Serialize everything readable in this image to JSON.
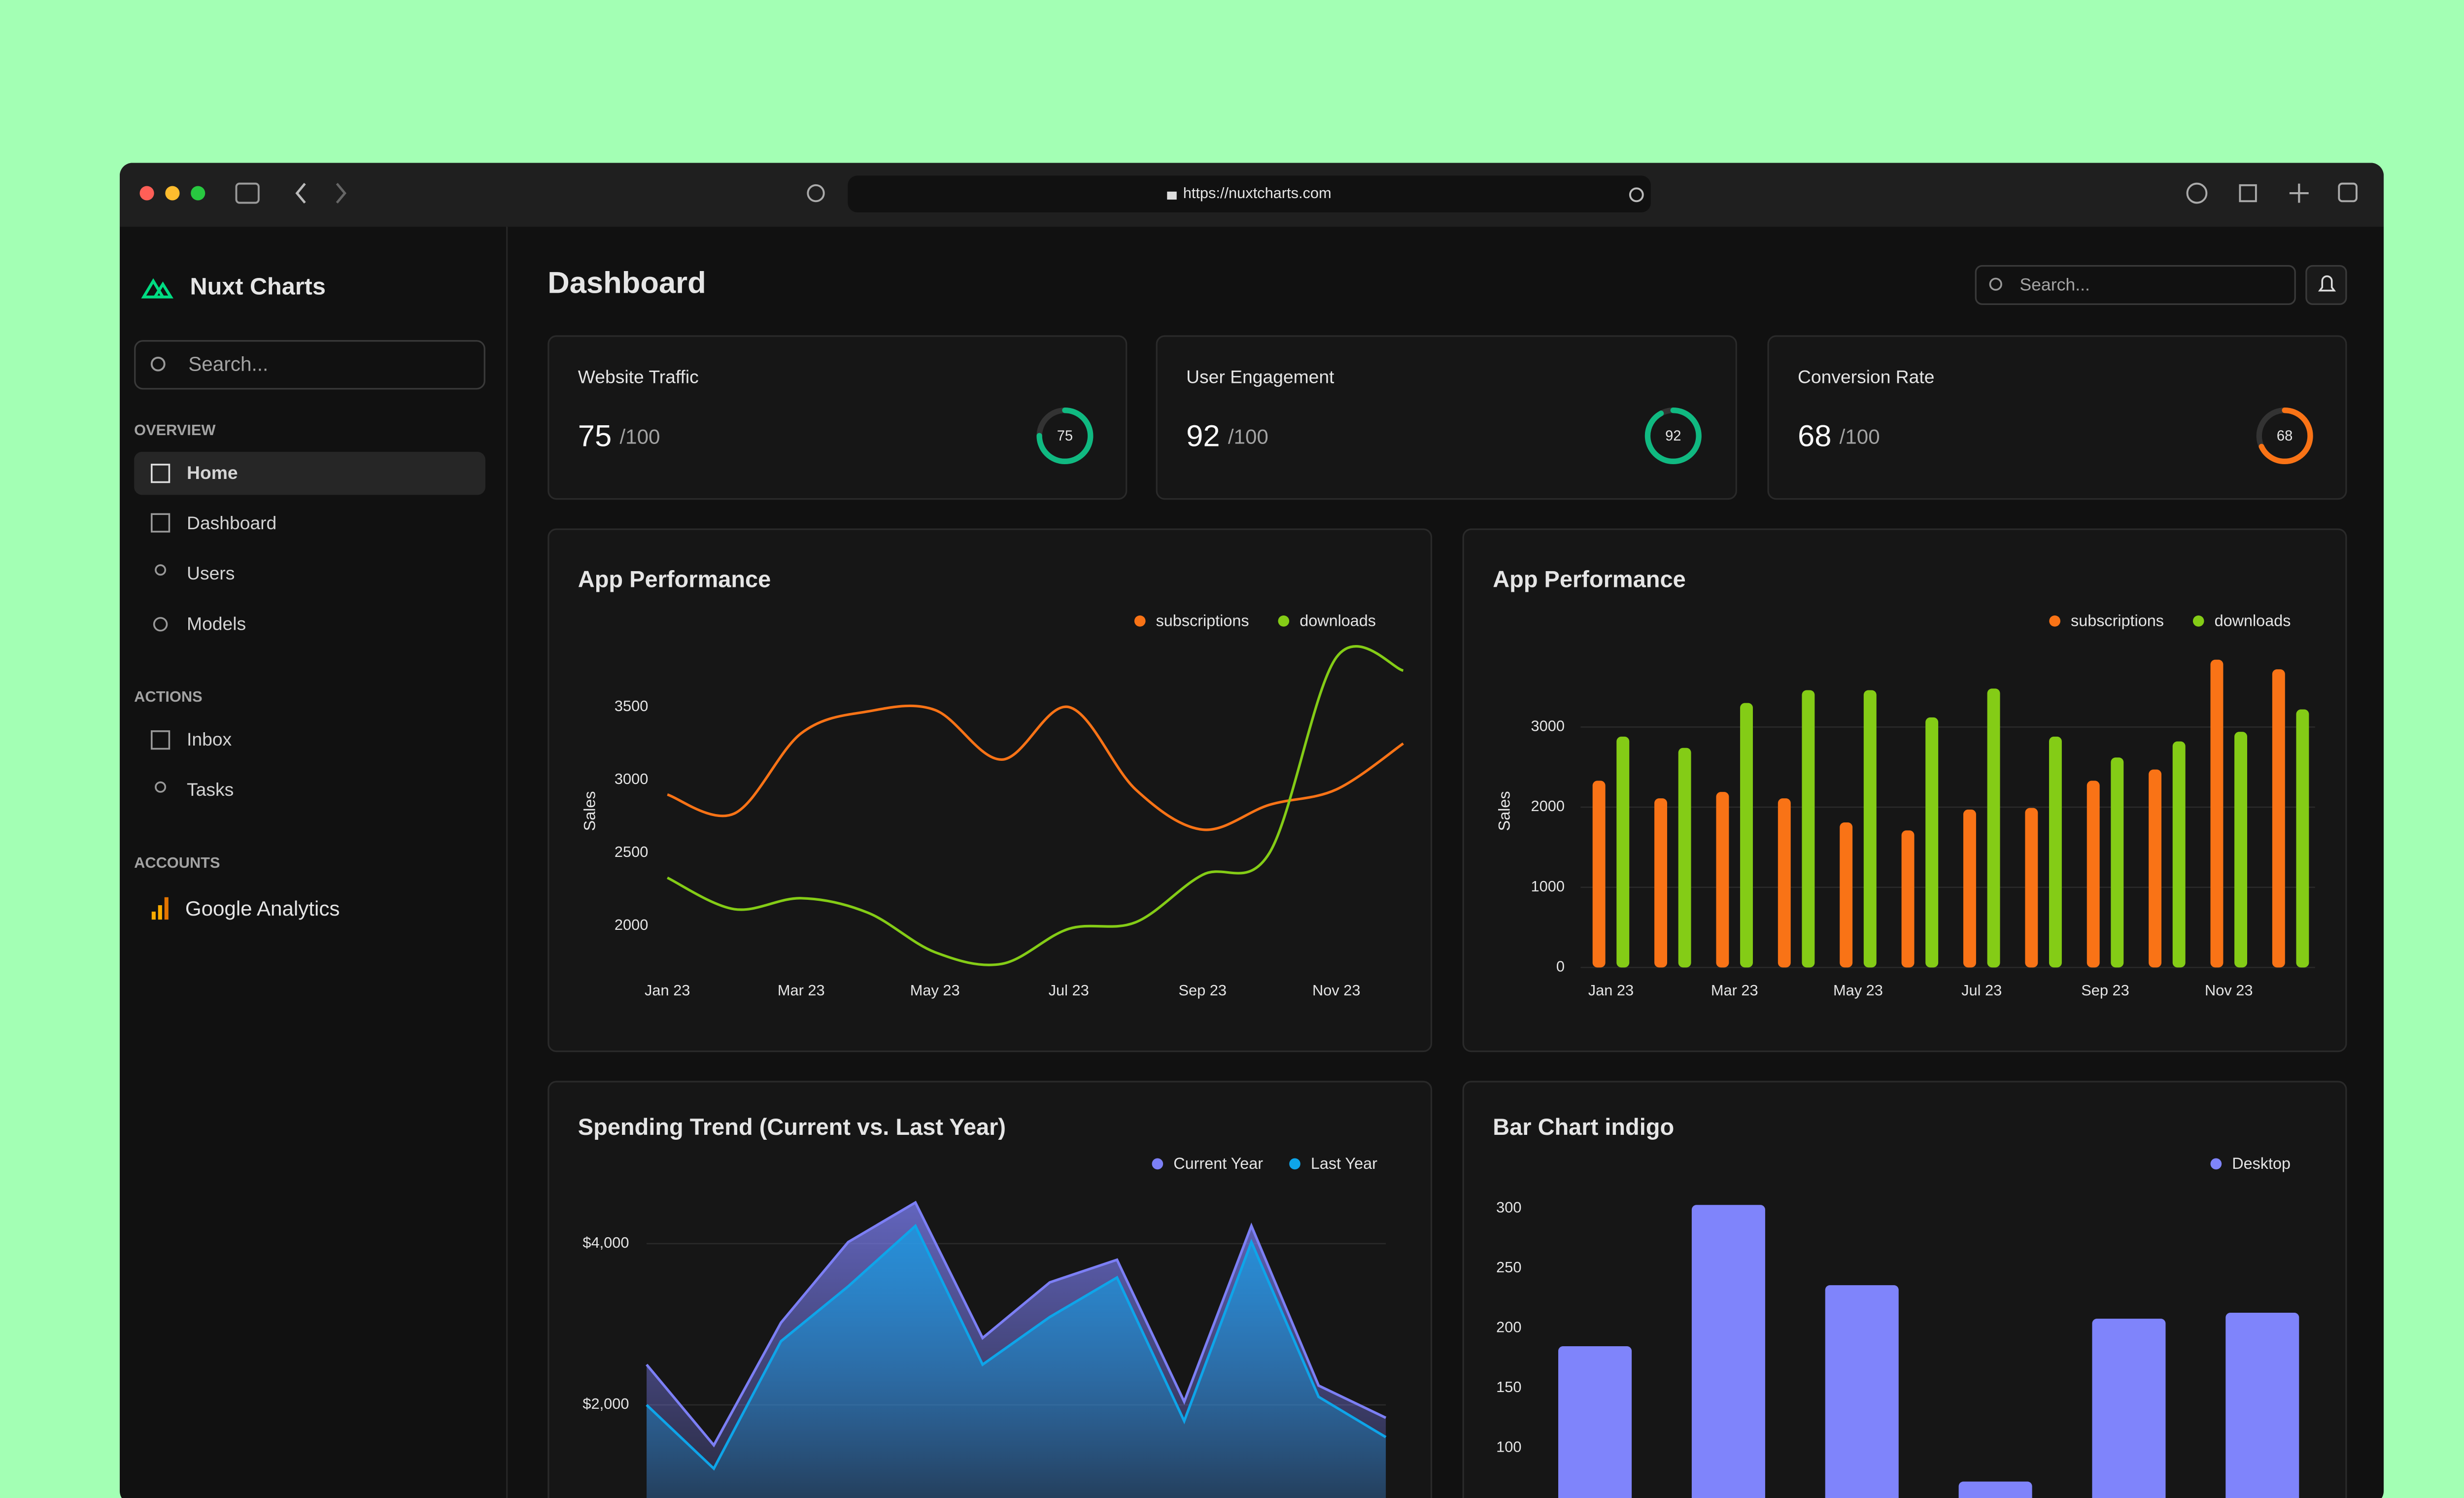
{
  "browser": {
    "url": "https://nuxtcharts.com"
  },
  "sidebar": {
    "brand": "Nuxt Charts",
    "search_placeholder": "Search...",
    "sections": [
      {
        "title": "OVERVIEW",
        "items": [
          "Home",
          "Dashboard",
          "Users",
          "Models"
        ]
      },
      {
        "title": "ACTIONS",
        "items": [
          "Inbox",
          "Tasks"
        ]
      },
      {
        "title": "ACCOUNTS",
        "items": [
          "Google Analytics"
        ]
      }
    ]
  },
  "header": {
    "title": "Dashboard",
    "search_placeholder": "Search..."
  },
  "stats": [
    {
      "label": "Website Traffic",
      "value": 75,
      "suffix": "/100",
      "max": 100,
      "color": "#10b981"
    },
    {
      "label": "User Engagement",
      "value": 92,
      "suffix": "/100",
      "max": 100,
      "color": "#10b981"
    },
    {
      "label": "Conversion Rate",
      "value": 68,
      "suffix": "/100",
      "max": 100,
      "color": "#f97316"
    }
  ],
  "chart_data": [
    {
      "type": "line",
      "title": "App Performance",
      "y_label": "Sales",
      "categories": [
        "Jan 23",
        null,
        "Mar 23",
        null,
        "May 23",
        null,
        "Jul 23",
        null,
        "Sep 23",
        null,
        "Nov 23",
        null
      ],
      "series": [
        {
          "name": "subscriptions",
          "color": "#f97316",
          "values": [
            2900,
            2770,
            3320,
            3470,
            3480,
            3140,
            3500,
            2935,
            2660,
            2830,
            2935,
            3250
          ]
        },
        {
          "name": "downloads",
          "color": "#84cc16",
          "values": [
            2330,
            2115,
            2190,
            2090,
            1820,
            1740,
            1980,
            2025,
            2350,
            2500,
            3840,
            3750
          ]
        }
      ],
      "ylim": [
        1700,
        3900
      ],
      "yticks": [
        2000,
        2500,
        3000,
        3500
      ],
      "grid": false
    },
    {
      "type": "bar",
      "title": "App Performance",
      "y_label": "Sales",
      "categories": [
        "Jan 23",
        null,
        "Mar 23",
        null,
        "May 23",
        null,
        "Jul 23",
        null,
        "Sep 23",
        null,
        "Nov 23",
        null
      ],
      "series": [
        {
          "name": "subscriptions",
          "color": "#f97316",
          "values": [
            2330,
            2110,
            2190,
            2110,
            1810,
            1710,
            1970,
            1990,
            2330,
            2470,
            3840,
            3720
          ]
        },
        {
          "name": "downloads",
          "color": "#84cc16",
          "values": [
            2880,
            2740,
            3300,
            3460,
            3460,
            3120,
            3480,
            2880,
            2620,
            2820,
            2940,
            3220
          ]
        }
      ],
      "ylim": [
        0,
        3900
      ],
      "yticks": [
        0,
        1000,
        2000,
        3000
      ],
      "grid": true
    },
    {
      "type": "area",
      "title": "Spending Trend (Current vs. Last Year)",
      "categories": [
        null,
        null,
        null,
        null,
        null,
        null,
        null,
        null,
        null,
        null,
        null,
        null
      ],
      "series": [
        {
          "name": "Current Year",
          "color": "#7c7ff5",
          "values": [
            2500,
            1500,
            3020,
            4020,
            4510,
            2830,
            3520,
            3800,
            2040,
            4220,
            2240,
            1840
          ]
        },
        {
          "name": "Last Year",
          "color": "#0ea5e9",
          "values": [
            2000,
            1210,
            2790,
            3470,
            4220,
            2500,
            3090,
            3580,
            1800,
            4020,
            2100,
            1600
          ]
        }
      ],
      "ylim": [
        0,
        4800
      ],
      "yticks": [
        {
          "value": 2000,
          "label": "$2,000"
        },
        {
          "value": 4000,
          "label": "$4,000"
        }
      ],
      "grid": true
    },
    {
      "type": "bar",
      "title": "Bar Chart indigo",
      "categories": [
        null,
        null,
        null,
        null,
        null,
        null
      ],
      "series": [
        {
          "name": "Desktop",
          "color": "#7f84fb",
          "values": [
            185,
            303,
            236,
            72,
            208,
            213
          ]
        }
      ],
      "ylim": [
        0,
        320
      ],
      "yticks": [
        100,
        150,
        200,
        250,
        300
      ],
      "grid": false
    }
  ]
}
